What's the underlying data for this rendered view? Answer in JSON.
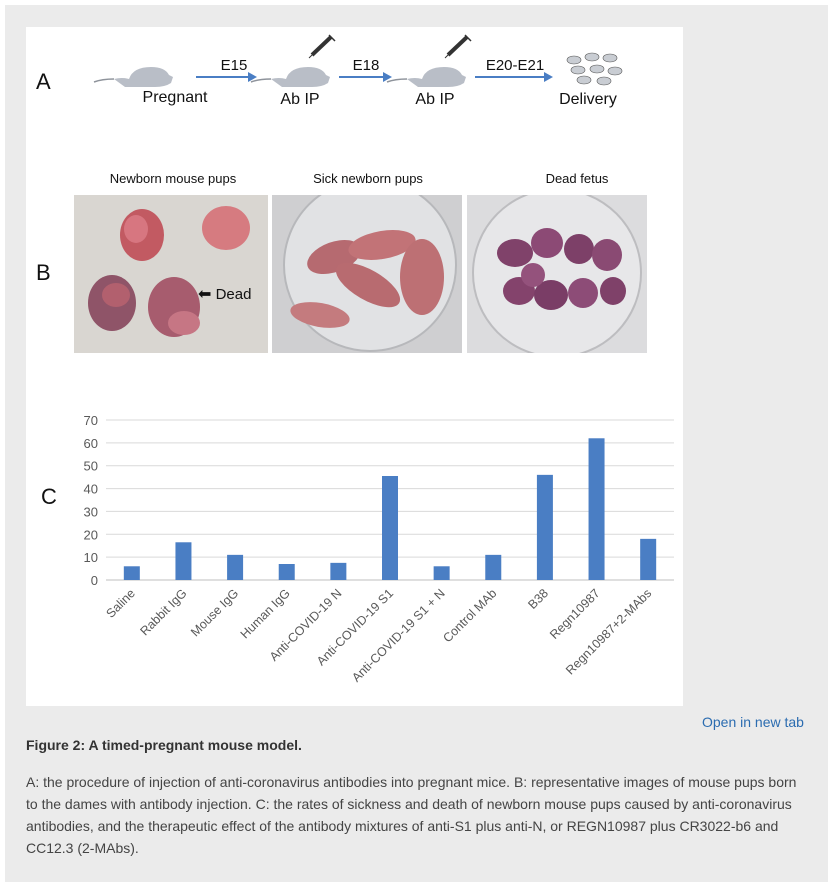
{
  "figure": {
    "panel_a": {
      "letter": "A",
      "steps": [
        "Pregnant",
        "Ab IP",
        "Ab IP",
        "Delivery"
      ],
      "arrows": [
        "E15",
        "E18",
        "E20-E21"
      ]
    },
    "panel_b": {
      "letter": "B",
      "photo_titles": [
        "Newborn mouse pups",
        "Sick newborn pups",
        "Dead fetus"
      ],
      "dead_label": "Dead"
    },
    "panel_c": {
      "letter": "C"
    }
  },
  "chart_data": {
    "type": "bar",
    "categories": [
      "Saline",
      "Rabbit IgG",
      "Mouse  IgG",
      "Human IgG",
      "Anti-COVID-19 N",
      "Anti-COVID-19 S1",
      "Anti-COVID-19 S1 + N",
      "Control MAb",
      "B38",
      "Regn10987",
      "Regn10987+2-MAbs"
    ],
    "values": [
      6,
      16.5,
      11,
      7,
      7.5,
      45.5,
      6,
      11,
      46,
      62,
      18
    ],
    "ylim": [
      0,
      70
    ],
    "yticks": [
      0,
      10,
      20,
      30,
      40,
      50,
      60,
      70
    ],
    "grid": true,
    "bar_color": "#4a7ec4",
    "grid_color": "#d9d9d9",
    "tick_color": "#595959"
  },
  "links": {
    "open_new_tab": "Open in new tab"
  },
  "caption": {
    "title": "Figure 2:   A timed-pregnant mouse model.",
    "text": "A: the procedure of injection of anti-coronavirus antibodies into pregnant mice. B: representative images of mouse pups born to the dames with antibody injection. C: the rates of sickness and death of newborn mouse pups caused by anti-coronavirus antibodies, and the therapeutic effect of the antibody mixtures of anti-S1 plus anti-N, or REGN10987 plus CR3022-b6 and CC12.3 (2-MAbs)."
  }
}
